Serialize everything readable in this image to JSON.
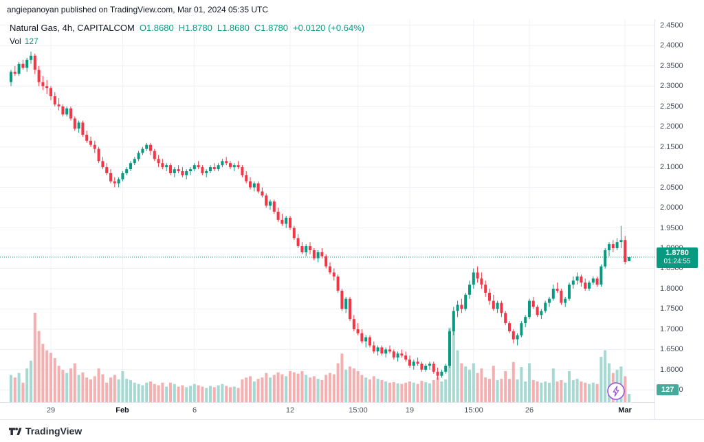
{
  "header": {
    "attribution": "angiepanoyan published on TradingView.com, Mar 01, 2024 05:35 UTC"
  },
  "legend": {
    "title": "Natural Gas, 4h, CAPITALCOM",
    "o": "O1.8680",
    "h": "H1.8780",
    "l": "L1.8680",
    "c": "C1.8780",
    "change": "+0.0120 (+0.64%)",
    "vol_label": "Vol",
    "vol_value": "127"
  },
  "price_axis": {
    "badge_price": "1.8780",
    "badge_countdown": "01:24:55",
    "volume_badge": "127"
  },
  "footer": {
    "logo_text": "TradingView"
  },
  "colors": {
    "up": "#089981",
    "down": "#F23645",
    "vol_up": "#a5d9d2",
    "vol_down": "#f4b0b0",
    "grid": "#eef1f7",
    "border": "#e0e3eb",
    "text": "#131722",
    "axis_text": "#4a4e59",
    "purple": "#9b51e0",
    "vol_badge": "#45a99c"
  },
  "chart_data": {
    "type": "candlestick",
    "symbol": "Natural Gas",
    "interval": "4h",
    "exchange": "CAPITALCOM",
    "current": {
      "open": 1.868,
      "high": 1.878,
      "low": 1.868,
      "close": 1.878,
      "change_abs": 0.012,
      "change_pct": 0.64,
      "volume": 127
    },
    "last_price": 1.878,
    "ylim": [
      1.52,
      2.465
    ],
    "y_labels": [
      "2.4500",
      "2.4000",
      "2.3500",
      "2.3000",
      "2.2500",
      "2.2000",
      "2.1500",
      "2.1000",
      "2.0500",
      "2.0000",
      "1.9500",
      "1.9000",
      "1.8500",
      "1.8000",
      "1.7500",
      "1.7000",
      "1.6500",
      "1.6000",
      "1.5500"
    ],
    "x_labels": [
      {
        "text": "29",
        "i": 10
      },
      {
        "text": "Feb",
        "i": 28,
        "major": true
      },
      {
        "text": "6",
        "i": 46
      },
      {
        "text": "12",
        "i": 70
      },
      {
        "text": "15:00",
        "i": 87
      },
      {
        "text": "19",
        "i": 100
      },
      {
        "text": "15:00",
        "i": 116
      },
      {
        "text": "26",
        "i": 130
      },
      {
        "text": "Mar",
        "i": 154,
        "major": true
      }
    ],
    "candles": [
      [
        2.31,
        2.34,
        2.3,
        2.335,
        420
      ],
      [
        2.335,
        2.35,
        2.325,
        2.33,
        380
      ],
      [
        2.33,
        2.36,
        2.325,
        2.355,
        450
      ],
      [
        2.355,
        2.365,
        2.34,
        2.345,
        300
      ],
      [
        2.345,
        2.37,
        2.335,
        2.365,
        520
      ],
      [
        2.365,
        2.385,
        2.355,
        2.375,
        640
      ],
      [
        2.375,
        2.38,
        2.33,
        2.34,
        1380
      ],
      [
        2.34,
        2.35,
        2.3,
        2.31,
        1100
      ],
      [
        2.31,
        2.325,
        2.29,
        2.3,
        900
      ],
      [
        2.3,
        2.315,
        2.28,
        2.295,
        800
      ],
      [
        2.295,
        2.3,
        2.265,
        2.275,
        760
      ],
      [
        2.275,
        2.285,
        2.25,
        2.255,
        680
      ],
      [
        2.255,
        2.27,
        2.24,
        2.25,
        560
      ],
      [
        2.25,
        2.255,
        2.225,
        2.23,
        500
      ],
      [
        2.23,
        2.25,
        2.225,
        2.245,
        450
      ],
      [
        2.245,
        2.25,
        2.215,
        2.22,
        520
      ],
      [
        2.22,
        2.225,
        2.19,
        2.195,
        600
      ],
      [
        2.195,
        2.215,
        2.185,
        2.21,
        420
      ],
      [
        2.21,
        2.215,
        2.175,
        2.18,
        460
      ],
      [
        2.18,
        2.19,
        2.16,
        2.165,
        380
      ],
      [
        2.165,
        2.175,
        2.15,
        2.155,
        350
      ],
      [
        2.155,
        2.165,
        2.135,
        2.145,
        400
      ],
      [
        2.145,
        2.15,
        2.11,
        2.115,
        520
      ],
      [
        2.115,
        2.125,
        2.095,
        2.1,
        430
      ],
      [
        2.1,
        2.11,
        2.08,
        2.085,
        300
      ],
      [
        2.085,
        2.095,
        2.06,
        2.065,
        380
      ],
      [
        2.065,
        2.075,
        2.05,
        2.06,
        420
      ],
      [
        2.06,
        2.075,
        2.05,
        2.07,
        350
      ],
      [
        2.07,
        2.09,
        2.065,
        2.085,
        480
      ],
      [
        2.085,
        2.1,
        2.08,
        2.095,
        360
      ],
      [
        2.095,
        2.115,
        2.09,
        2.11,
        340
      ],
      [
        2.11,
        2.125,
        2.105,
        2.12,
        300
      ],
      [
        2.12,
        2.14,
        2.115,
        2.135,
        280
      ],
      [
        2.135,
        2.15,
        2.13,
        2.145,
        260
      ],
      [
        2.145,
        2.16,
        2.14,
        2.155,
        300
      ],
      [
        2.155,
        2.16,
        2.13,
        2.14,
        320
      ],
      [
        2.14,
        2.145,
        2.115,
        2.12,
        280
      ],
      [
        2.12,
        2.13,
        2.1,
        2.11,
        260
      ],
      [
        2.11,
        2.12,
        2.095,
        2.1,
        300
      ],
      [
        2.1,
        2.11,
        2.09,
        2.105,
        240
      ],
      [
        2.105,
        2.11,
        2.08,
        2.085,
        300
      ],
      [
        2.085,
        2.1,
        2.075,
        2.095,
        280
      ],
      [
        2.095,
        2.105,
        2.085,
        2.09,
        240
      ],
      [
        2.09,
        2.1,
        2.075,
        2.08,
        260
      ],
      [
        2.08,
        2.095,
        2.07,
        2.09,
        230
      ],
      [
        2.09,
        2.1,
        2.08,
        2.095,
        250
      ],
      [
        2.095,
        2.11,
        2.09,
        2.105,
        280
      ],
      [
        2.105,
        2.115,
        2.095,
        2.1,
        260
      ],
      [
        2.1,
        2.105,
        2.08,
        2.085,
        240
      ],
      [
        2.085,
        2.095,
        2.075,
        2.09,
        220
      ],
      [
        2.09,
        2.105,
        2.085,
        2.1,
        250
      ],
      [
        2.1,
        2.11,
        2.09,
        2.095,
        230
      ],
      [
        2.095,
        2.11,
        2.09,
        2.105,
        260
      ],
      [
        2.105,
        2.12,
        2.1,
        2.115,
        280
      ],
      [
        2.115,
        2.125,
        2.105,
        2.11,
        250
      ],
      [
        2.11,
        2.115,
        2.095,
        2.1,
        230
      ],
      [
        2.1,
        2.11,
        2.09,
        2.105,
        240
      ],
      [
        2.105,
        2.115,
        2.095,
        2.1,
        220
      ],
      [
        2.1,
        2.105,
        2.075,
        2.08,
        350
      ],
      [
        2.08,
        2.09,
        2.06,
        2.065,
        380
      ],
      [
        2.065,
        2.075,
        2.045,
        2.05,
        400
      ],
      [
        2.05,
        2.065,
        2.04,
        2.06,
        320
      ],
      [
        2.06,
        2.065,
        2.035,
        2.04,
        360
      ],
      [
        2.04,
        2.05,
        2.025,
        2.03,
        380
      ],
      [
        2.03,
        2.035,
        2.0,
        2.005,
        450
      ],
      [
        2.005,
        2.02,
        1.995,
        2.015,
        380
      ],
      [
        2.015,
        2.02,
        1.985,
        1.99,
        420
      ],
      [
        1.99,
        2.0,
        1.965,
        1.97,
        460
      ],
      [
        1.97,
        1.985,
        1.955,
        1.96,
        430
      ],
      [
        1.96,
        1.98,
        1.95,
        1.975,
        400
      ],
      [
        1.975,
        1.98,
        1.945,
        1.95,
        480
      ],
      [
        1.95,
        1.955,
        1.92,
        1.925,
        460
      ],
      [
        1.925,
        1.935,
        1.9,
        1.905,
        440
      ],
      [
        1.905,
        1.915,
        1.885,
        1.89,
        480
      ],
      [
        1.89,
        1.91,
        1.88,
        1.905,
        420
      ],
      [
        1.905,
        1.915,
        1.885,
        1.895,
        380
      ],
      [
        1.895,
        1.9,
        1.87,
        1.875,
        400
      ],
      [
        1.875,
        1.895,
        1.865,
        1.89,
        360
      ],
      [
        1.89,
        1.9,
        1.875,
        1.88,
        340
      ],
      [
        1.88,
        1.885,
        1.85,
        1.855,
        420
      ],
      [
        1.855,
        1.865,
        1.835,
        1.84,
        450
      ],
      [
        1.84,
        1.85,
        1.82,
        1.83,
        430
      ],
      [
        1.83,
        1.835,
        1.79,
        1.795,
        600
      ],
      [
        1.795,
        1.8,
        1.745,
        1.75,
        750
      ],
      [
        1.75,
        1.78,
        1.74,
        1.775,
        500
      ],
      [
        1.775,
        1.78,
        1.72,
        1.725,
        550
      ],
      [
        1.725,
        1.735,
        1.695,
        1.7,
        520
      ],
      [
        1.7,
        1.715,
        1.685,
        1.69,
        480
      ],
      [
        1.69,
        1.7,
        1.665,
        1.67,
        420
      ],
      [
        1.67,
        1.685,
        1.655,
        1.68,
        380
      ],
      [
        1.68,
        1.685,
        1.655,
        1.66,
        350
      ],
      [
        1.66,
        1.67,
        1.64,
        1.645,
        400
      ],
      [
        1.645,
        1.66,
        1.635,
        1.655,
        360
      ],
      [
        1.655,
        1.66,
        1.635,
        1.64,
        340
      ],
      [
        1.64,
        1.655,
        1.63,
        1.65,
        320
      ],
      [
        1.65,
        1.66,
        1.64,
        1.645,
        300
      ],
      [
        1.645,
        1.65,
        1.625,
        1.63,
        310
      ],
      [
        1.63,
        1.645,
        1.62,
        1.64,
        290
      ],
      [
        1.64,
        1.65,
        1.63,
        1.635,
        280
      ],
      [
        1.635,
        1.645,
        1.62,
        1.625,
        300
      ],
      [
        1.625,
        1.635,
        1.605,
        1.61,
        320
      ],
      [
        1.61,
        1.625,
        1.6,
        1.62,
        300
      ],
      [
        1.62,
        1.63,
        1.61,
        1.615,
        280
      ],
      [
        1.615,
        1.62,
        1.595,
        1.6,
        330
      ],
      [
        1.6,
        1.615,
        1.595,
        1.61,
        310
      ],
      [
        1.61,
        1.62,
        1.6,
        1.615,
        290
      ],
      [
        1.615,
        1.62,
        1.59,
        1.595,
        340
      ],
      [
        1.595,
        1.605,
        1.575,
        1.585,
        380
      ],
      [
        1.585,
        1.6,
        1.58,
        1.595,
        320
      ],
      [
        1.595,
        1.615,
        1.59,
        1.61,
        350
      ],
      [
        1.61,
        1.7,
        1.605,
        1.695,
        1150
      ],
      [
        1.695,
        1.755,
        1.685,
        1.745,
        1300
      ],
      [
        1.745,
        1.77,
        1.73,
        1.76,
        800
      ],
      [
        1.76,
        1.775,
        1.74,
        1.75,
        600
      ],
      [
        1.75,
        1.79,
        1.745,
        1.785,
        550
      ],
      [
        1.785,
        1.82,
        1.775,
        1.81,
        500
      ],
      [
        1.81,
        1.85,
        1.8,
        1.84,
        600
      ],
      [
        1.84,
        1.855,
        1.815,
        1.825,
        450
      ],
      [
        1.825,
        1.84,
        1.8,
        1.81,
        520
      ],
      [
        1.81,
        1.82,
        1.78,
        1.79,
        380
      ],
      [
        1.79,
        1.8,
        1.76,
        1.77,
        360
      ],
      [
        1.77,
        1.785,
        1.745,
        1.75,
        560
      ],
      [
        1.75,
        1.77,
        1.74,
        1.765,
        340
      ],
      [
        1.765,
        1.77,
        1.73,
        1.74,
        360
      ],
      [
        1.74,
        1.745,
        1.71,
        1.715,
        480
      ],
      [
        1.715,
        1.72,
        1.69,
        1.695,
        360
      ],
      [
        1.695,
        1.7,
        1.665,
        1.675,
        620
      ],
      [
        1.675,
        1.69,
        1.66,
        1.685,
        350
      ],
      [
        1.685,
        1.72,
        1.68,
        1.715,
        540
      ],
      [
        1.715,
        1.735,
        1.705,
        1.73,
        320
      ],
      [
        1.73,
        1.775,
        1.725,
        1.77,
        600
      ],
      [
        1.77,
        1.78,
        1.75,
        1.755,
        340
      ],
      [
        1.755,
        1.76,
        1.73,
        1.735,
        320
      ],
      [
        1.735,
        1.75,
        1.725,
        1.745,
        300
      ],
      [
        1.745,
        1.77,
        1.74,
        1.765,
        320
      ],
      [
        1.765,
        1.78,
        1.755,
        1.775,
        300
      ],
      [
        1.775,
        1.81,
        1.77,
        1.8,
        520
      ],
      [
        1.8,
        1.815,
        1.79,
        1.795,
        320
      ],
      [
        1.795,
        1.8,
        1.76,
        1.765,
        340
      ],
      [
        1.765,
        1.78,
        1.755,
        1.775,
        300
      ],
      [
        1.775,
        1.815,
        1.77,
        1.81,
        480
      ],
      [
        1.81,
        1.83,
        1.8,
        1.82,
        340
      ],
      [
        1.82,
        1.84,
        1.81,
        1.83,
        360
      ],
      [
        1.83,
        1.835,
        1.805,
        1.815,
        320
      ],
      [
        1.815,
        1.825,
        1.795,
        1.8,
        300
      ],
      [
        1.8,
        1.82,
        1.795,
        1.815,
        280
      ],
      [
        1.815,
        1.83,
        1.81,
        1.825,
        300
      ],
      [
        1.825,
        1.83,
        1.805,
        1.81,
        280
      ],
      [
        1.81,
        1.86,
        1.805,
        1.855,
        700
      ],
      [
        1.855,
        1.9,
        1.85,
        1.895,
        800
      ],
      [
        1.895,
        1.915,
        1.88,
        1.91,
        600
      ],
      [
        1.91,
        1.92,
        1.89,
        1.9,
        450
      ],
      [
        1.9,
        1.925,
        1.895,
        1.915,
        500
      ],
      [
        1.915,
        1.955,
        1.9,
        1.92,
        550
      ],
      [
        1.92,
        1.93,
        1.86,
        1.866,
        400
      ],
      [
        1.868,
        1.878,
        1.868,
        1.878,
        127
      ]
    ]
  }
}
